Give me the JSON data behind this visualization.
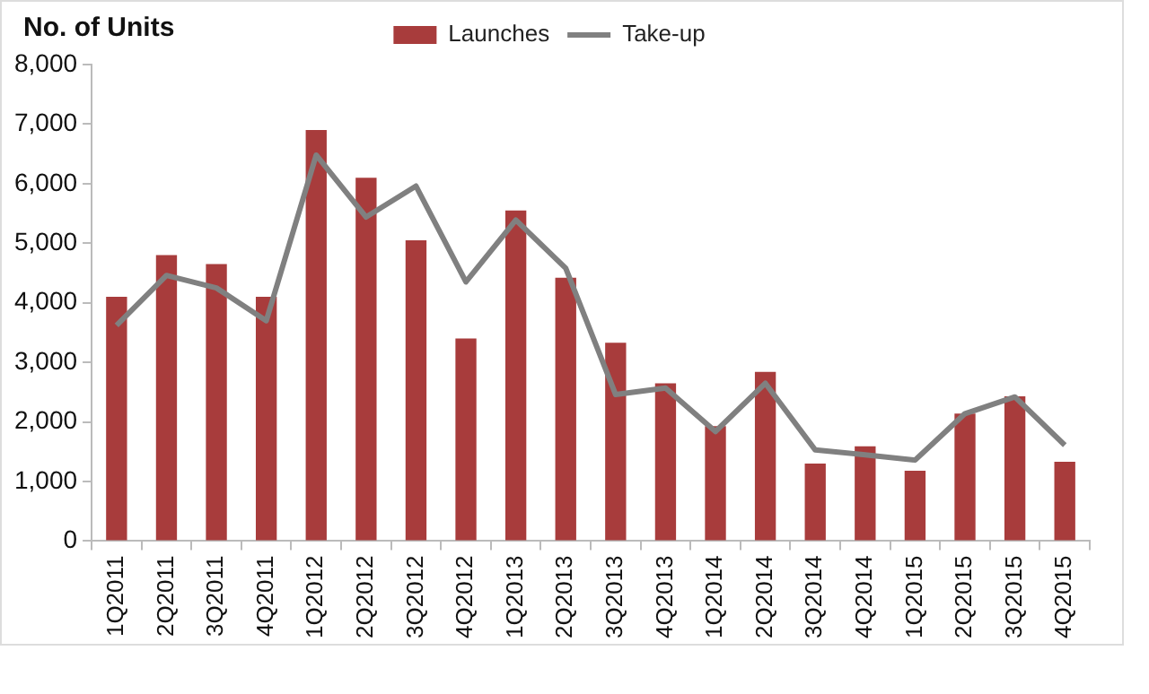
{
  "chart_data": {
    "type": "bar",
    "ylabel": "No. of Units",
    "categories": [
      "1Q2011",
      "2Q2011",
      "3Q2011",
      "4Q2011",
      "1Q2012",
      "2Q2012",
      "3Q2012",
      "4Q2012",
      "1Q2013",
      "2Q2013",
      "3Q2013",
      "4Q2013",
      "1Q2014",
      "2Q2014",
      "3Q2014",
      "4Q2014",
      "1Q2015",
      "2Q2015",
      "3Q2015",
      "4Q2015"
    ],
    "series": [
      {
        "name": "Launches",
        "color": "#a83c3c",
        "values": [
          4100,
          4800,
          4650,
          4100,
          6900,
          6100,
          5050,
          3400,
          5550,
          4420,
          3330,
          2650,
          1930,
          2840,
          1300,
          1590,
          1180,
          2140,
          2430,
          1330
        ]
      },
      {
        "name": "Take-up",
        "type": "line",
        "color": "#808080",
        "values": [
          3620,
          4460,
          4250,
          3700,
          6480,
          5440,
          5960,
          4350,
          5390,
          4580,
          2460,
          2570,
          1840,
          2650,
          1530,
          1450,
          1360,
          2140,
          2420,
          1610
        ]
      }
    ],
    "ylim": [
      0,
      8000
    ],
    "yticks": [
      {
        "value": 0,
        "label": "0"
      },
      {
        "value": 1000,
        "label": "1,000"
      },
      {
        "value": 2000,
        "label": "2,000"
      },
      {
        "value": 3000,
        "label": "3,000"
      },
      {
        "value": 4000,
        "label": "4,000"
      },
      {
        "value": 5000,
        "label": "5,000"
      },
      {
        "value": 6000,
        "label": "6,000"
      },
      {
        "value": 7000,
        "label": "7,000"
      },
      {
        "value": 8000,
        "label": "8,000"
      }
    ],
    "grid": false,
    "legend": "top",
    "marker": "none",
    "line_style": "solid"
  }
}
